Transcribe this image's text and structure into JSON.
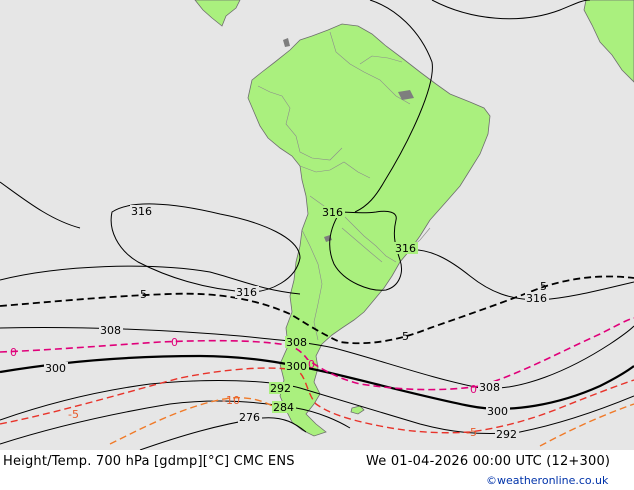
{
  "map": {
    "height_labels": {
      "h316_west": "316",
      "h316_mid": "316",
      "h316_inland": "316",
      "h316_east": "316",
      "h316_atlantic": "316",
      "h308_west": "308",
      "h308_coast": "308",
      "h308_east": "308",
      "h300_west": "300",
      "h300_coast": "300",
      "h300_east": "300",
      "h292_coast": "292",
      "h292_east": "292",
      "h284": "284",
      "h276": "276"
    },
    "temp_labels": {
      "t5_west": "5",
      "t5_east": "5",
      "t5_far_east": "5",
      "t0_west": "0",
      "t0_mid": "0",
      "t0_coast": "0",
      "t0_east": "0",
      "tm5_west": "-5",
      "tm5_east": "-5",
      "tm10": "-10"
    },
    "colors": {
      "ocean": "#e6e6e6",
      "land": "#aaf07e",
      "height_contour": "#000000",
      "isotherm_zero": "#e0007a",
      "isotherm_minus5": "#e8332a",
      "isotherm_minus10": "#f07a28"
    }
  },
  "footer": {
    "title": "Height/Temp. 700 hPa [gdmp][°C] CMC ENS",
    "valid_time": "We 01-04-2026 00:00 UTC (12+300)",
    "credit": "©weatheronline.co.uk"
  }
}
